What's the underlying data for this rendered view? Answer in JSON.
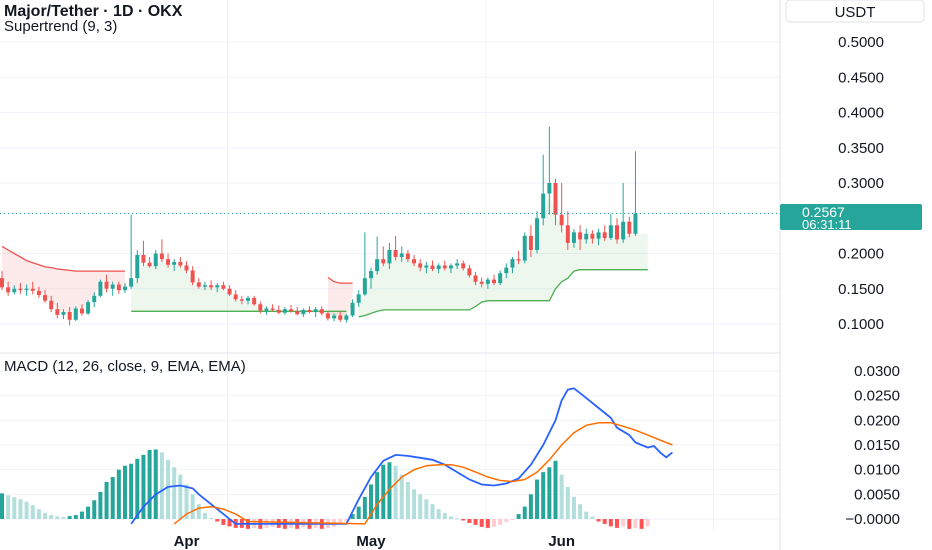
{
  "header": {
    "title": "Major/Tether · 1D · OKX",
    "indicator": "Supertrend (9, 3)"
  },
  "currency": "USDT",
  "price_label": {
    "price": "0.2567",
    "countdown": "06:31:11"
  },
  "colors": {
    "up": "#26a69a",
    "down": "#ef5350",
    "macd": "#2962ff",
    "signal": "#ff6d00",
    "hist_up_strong": "#26a69a",
    "hist_up_weak": "#b2dfdb",
    "hist_down_strong": "#ff5252",
    "hist_down_weak": "#ffcdd2",
    "st_up": "#4caf50",
    "st_down": "#ef5350"
  },
  "chart_data": [
    {
      "type": "candlestick",
      "name": "price",
      "y_ticks": [
        "0.5000",
        "0.4500",
        "0.4000",
        "0.3500",
        "0.3000",
        "0.2000",
        "0.1500",
        "0.1000"
      ],
      "ylim": [
        0.07,
        0.52
      ],
      "last_price": 0.2567,
      "day_start": "2025-03-02",
      "candles": [
        [
          0.165,
          0.175,
          0.148,
          0.152
        ],
        [
          0.152,
          0.16,
          0.14,
          0.145
        ],
        [
          0.145,
          0.155,
          0.142,
          0.15
        ],
        [
          0.15,
          0.158,
          0.143,
          0.148
        ],
        [
          0.148,
          0.156,
          0.14,
          0.15
        ],
        [
          0.15,
          0.16,
          0.142,
          0.147
        ],
        [
          0.147,
          0.153,
          0.137,
          0.141
        ],
        [
          0.141,
          0.148,
          0.13,
          0.133
        ],
        [
          0.133,
          0.14,
          0.117,
          0.121
        ],
        [
          0.121,
          0.13,
          0.108,
          0.113
        ],
        [
          0.113,
          0.121,
          0.107,
          0.117
        ],
        [
          0.117,
          0.124,
          0.098,
          0.106
        ],
        [
          0.106,
          0.125,
          0.104,
          0.122
        ],
        [
          0.122,
          0.128,
          0.112,
          0.115
        ],
        [
          0.115,
          0.134,
          0.113,
          0.131
        ],
        [
          0.131,
          0.145,
          0.124,
          0.14
        ],
        [
          0.14,
          0.163,
          0.138,
          0.16
        ],
        [
          0.16,
          0.17,
          0.145,
          0.15
        ],
        [
          0.15,
          0.16,
          0.14,
          0.156
        ],
        [
          0.156,
          0.16,
          0.143,
          0.148
        ],
        [
          0.148,
          0.158,
          0.144,
          0.153
        ],
        [
          0.153,
          0.255,
          0.15,
          0.165
        ],
        [
          0.165,
          0.205,
          0.158,
          0.198
        ],
        [
          0.198,
          0.218,
          0.182,
          0.187
        ],
        [
          0.187,
          0.195,
          0.18,
          0.182
        ],
        [
          0.182,
          0.205,
          0.178,
          0.2
        ],
        [
          0.2,
          0.22,
          0.188,
          0.192
        ],
        [
          0.192,
          0.2,
          0.18,
          0.184
        ],
        [
          0.184,
          0.192,
          0.175,
          0.188
        ],
        [
          0.188,
          0.195,
          0.18,
          0.183
        ],
        [
          0.183,
          0.189,
          0.172,
          0.176
        ],
        [
          0.176,
          0.182,
          0.155,
          0.159
        ],
        [
          0.159,
          0.165,
          0.15,
          0.153
        ],
        [
          0.153,
          0.16,
          0.148,
          0.155
        ],
        [
          0.155,
          0.162,
          0.148,
          0.152
        ],
        [
          0.152,
          0.158,
          0.145,
          0.155
        ],
        [
          0.155,
          0.16,
          0.148,
          0.15
        ],
        [
          0.15,
          0.155,
          0.14,
          0.142
        ],
        [
          0.142,
          0.148,
          0.132,
          0.135
        ],
        [
          0.135,
          0.14,
          0.128,
          0.133
        ],
        [
          0.133,
          0.14,
          0.128,
          0.137
        ],
        [
          0.137,
          0.14,
          0.126,
          0.128
        ],
        [
          0.128,
          0.132,
          0.115,
          0.119
        ],
        [
          0.119,
          0.125,
          0.113,
          0.122
        ],
        [
          0.122,
          0.128,
          0.118,
          0.12
        ],
        [
          0.12,
          0.126,
          0.114,
          0.116
        ],
        [
          0.116,
          0.124,
          0.113,
          0.121
        ],
        [
          0.121,
          0.127,
          0.116,
          0.118
        ],
        [
          0.118,
          0.124,
          0.112,
          0.114
        ],
        [
          0.114,
          0.122,
          0.11,
          0.12
        ],
        [
          0.12,
          0.125,
          0.115,
          0.117
        ],
        [
          0.117,
          0.124,
          0.11,
          0.121
        ],
        [
          0.121,
          0.125,
          0.112,
          0.115
        ],
        [
          0.115,
          0.118,
          0.105,
          0.108
        ],
        [
          0.108,
          0.115,
          0.104,
          0.112
        ],
        [
          0.112,
          0.118,
          0.103,
          0.106
        ],
        [
          0.106,
          0.114,
          0.102,
          0.112
        ],
        [
          0.112,
          0.135,
          0.11,
          0.13
        ],
        [
          0.13,
          0.148,
          0.124,
          0.142
        ],
        [
          0.142,
          0.23,
          0.14,
          0.165
        ],
        [
          0.165,
          0.18,
          0.15,
          0.175
        ],
        [
          0.175,
          0.224,
          0.17,
          0.192
        ],
        [
          0.192,
          0.21,
          0.182,
          0.186
        ],
        [
          0.186,
          0.215,
          0.178,
          0.205
        ],
        [
          0.205,
          0.225,
          0.19,
          0.195
        ],
        [
          0.195,
          0.21,
          0.188,
          0.2
        ],
        [
          0.2,
          0.205,
          0.188,
          0.192
        ],
        [
          0.192,
          0.198,
          0.182,
          0.186
        ],
        [
          0.186,
          0.192,
          0.175,
          0.18
        ],
        [
          0.18,
          0.188,
          0.172,
          0.183
        ],
        [
          0.183,
          0.19,
          0.175,
          0.178
        ],
        [
          0.178,
          0.186,
          0.172,
          0.183
        ],
        [
          0.183,
          0.19,
          0.176,
          0.179
        ],
        [
          0.179,
          0.186,
          0.172,
          0.183
        ],
        [
          0.183,
          0.192,
          0.178,
          0.186
        ],
        [
          0.186,
          0.19,
          0.176,
          0.179
        ],
        [
          0.179,
          0.184,
          0.166,
          0.169
        ],
        [
          0.169,
          0.174,
          0.155,
          0.16
        ],
        [
          0.16,
          0.166,
          0.152,
          0.157
        ],
        [
          0.157,
          0.166,
          0.15,
          0.163
        ],
        [
          0.163,
          0.17,
          0.155,
          0.158
        ],
        [
          0.158,
          0.176,
          0.155,
          0.172
        ],
        [
          0.172,
          0.186,
          0.165,
          0.18
        ],
        [
          0.18,
          0.195,
          0.172,
          0.192
        ],
        [
          0.192,
          0.204,
          0.185,
          0.19
        ],
        [
          0.19,
          0.23,
          0.186,
          0.225
        ],
        [
          0.225,
          0.24,
          0.195,
          0.205
        ],
        [
          0.205,
          0.26,
          0.2,
          0.25
        ],
        [
          0.25,
          0.34,
          0.24,
          0.285
        ],
        [
          0.285,
          0.38,
          0.255,
          0.3
        ],
        [
          0.3,
          0.306,
          0.24,
          0.255
        ],
        [
          0.255,
          0.3,
          0.23,
          0.24
        ],
        [
          0.24,
          0.26,
          0.205,
          0.215
        ],
        [
          0.215,
          0.235,
          0.208,
          0.23
        ],
        [
          0.23,
          0.24,
          0.205,
          0.22
        ],
        [
          0.22,
          0.235,
          0.214,
          0.228
        ],
        [
          0.228,
          0.233,
          0.214,
          0.221
        ],
        [
          0.221,
          0.235,
          0.212,
          0.23
        ],
        [
          0.23,
          0.24,
          0.218,
          0.222
        ],
        [
          0.222,
          0.256,
          0.219,
          0.24
        ],
        [
          0.24,
          0.25,
          0.214,
          0.22
        ],
        [
          0.22,
          0.3,
          0.215,
          0.245
        ],
        [
          0.245,
          0.252,
          0.223,
          0.228
        ],
        [
          0.228,
          0.345,
          0.225,
          0.2567
        ]
      ],
      "supertrend": [
        {
          "side": "down",
          "from": 0,
          "to": 20,
          "values": [
            0.21,
            0.205,
            0.2,
            0.195,
            0.19,
            0.187,
            0.184,
            0.181,
            0.18,
            0.178,
            0.177,
            0.176,
            0.175,
            0.175,
            0.175,
            0.175,
            0.175,
            0.175,
            0.175,
            0.175,
            0.175
          ]
        },
        {
          "side": "up",
          "from": 21,
          "to": 56,
          "values": [
            0.118,
            0.118,
            0.118,
            0.118,
            0.118,
            0.118,
            0.118,
            0.118,
            0.118,
            0.118,
            0.118,
            0.118,
            0.118,
            0.118,
            0.118,
            0.118,
            0.118,
            0.118,
            0.118,
            0.118,
            0.118,
            0.118,
            0.118,
            0.118,
            0.118,
            0.118,
            0.118,
            0.118,
            0.118,
            0.118,
            0.118,
            0.118,
            0.118,
            0.118,
            0.118,
            0.118
          ]
        },
        {
          "side": "down",
          "from": 53,
          "to": 57,
          "values": [
            0.166,
            0.16,
            0.158,
            0.158,
            0.158
          ]
        },
        {
          "side": "up",
          "from": 58,
          "to": 105,
          "values": [
            0.11,
            0.112,
            0.115,
            0.118,
            0.12,
            0.12,
            0.12,
            0.12,
            0.12,
            0.12,
            0.12,
            0.12,
            0.12,
            0.12,
            0.12,
            0.12,
            0.12,
            0.12,
            0.12,
            0.125,
            0.131,
            0.133,
            0.133,
            0.133,
            0.133,
            0.133,
            0.133,
            0.133,
            0.133,
            0.133,
            0.133,
            0.133,
            0.15,
            0.16,
            0.165,
            0.175,
            0.177,
            0.177,
            0.177,
            0.177,
            0.177,
            0.177,
            0.177,
            0.177,
            0.177,
            0.177,
            0.177,
            0.177
          ]
        }
      ]
    },
    {
      "type": "macd",
      "name": "MACD (12, 26, close, 9, EMA, EMA)",
      "y_ticks": [
        "0.0300",
        "0.0250",
        "0.0200",
        "0.0150",
        "0.0100",
        "0.0050",
        "−0.0000"
      ],
      "ylim": [
        -0.0015,
        0.031
      ],
      "x_ticks": [
        {
          "label": "Apr",
          "day": 30
        },
        {
          "label": "May",
          "day": 60
        },
        {
          "label": "Jun",
          "day": 91
        }
      ],
      "histogram": [
        0.0052,
        0.0048,
        0.0044,
        0.004,
        0.0035,
        0.0028,
        0.002,
        0.0012,
        0.0008,
        0.0005,
        0.0004,
        0.0006,
        0.0008,
        0.0015,
        0.0025,
        0.0038,
        0.0055,
        0.0075,
        0.0085,
        0.01,
        0.0108,
        0.0112,
        0.0122,
        0.013,
        0.014,
        0.0141,
        0.0135,
        0.012,
        0.0105,
        0.009,
        0.007,
        0.005,
        0.003,
        0.0012,
        0.0002,
        -0.0005,
        -0.0012,
        -0.0015,
        -0.0018,
        -0.0018,
        -0.002,
        -0.0018,
        -0.002,
        -0.0018,
        -0.0016,
        -0.0018,
        -0.002,
        -0.0018,
        -0.002,
        -0.0017,
        -0.002,
        -0.0018,
        -0.002,
        -0.0018,
        -0.0016,
        -0.001,
        -0.0005,
        0.001,
        0.0025,
        0.0045,
        0.007,
        0.0095,
        0.011,
        0.0115,
        0.0108,
        0.009,
        0.0075,
        0.006,
        0.005,
        0.004,
        0.003,
        0.002,
        0.0012,
        0.0005,
        0.0001,
        -0.0003,
        -0.0008,
        -0.0012,
        -0.0016,
        -0.0018,
        -0.0016,
        -0.0012,
        -0.0006,
        -0.0002,
        0.001,
        0.0025,
        0.005,
        0.008,
        0.0095,
        0.0105,
        0.0118,
        0.009,
        0.0065,
        0.0045,
        0.003,
        0.0015,
        0.0005,
        -0.0005,
        -0.001,
        -0.0015,
        -0.0018,
        -0.0015,
        -0.002,
        -0.0018,
        -0.002,
        -0.0015
      ],
      "macd": [
        [
          21,
          -0.001
        ],
        [
          23,
          0.0025
        ],
        [
          25,
          0.005
        ],
        [
          27,
          0.0065
        ],
        [
          29,
          0.0068
        ],
        [
          31,
          0.0062
        ],
        [
          32,
          0.005
        ],
        [
          34,
          0.003
        ],
        [
          36,
          0.001
        ],
        [
          38,
          -0.001
        ],
        [
          56,
          -0.001
        ],
        [
          58,
          0.004
        ],
        [
          60,
          0.0085
        ],
        [
          62,
          0.0118
        ],
        [
          64,
          0.013
        ],
        [
          66,
          0.0128
        ],
        [
          68,
          0.0124
        ],
        [
          70,
          0.012
        ],
        [
          72,
          0.011
        ],
        [
          74,
          0.0095
        ],
        [
          76,
          0.008
        ],
        [
          78,
          0.007
        ],
        [
          80,
          0.0068
        ],
        [
          82,
          0.0072
        ],
        [
          84,
          0.0082
        ],
        [
          86,
          0.011
        ],
        [
          88,
          0.015
        ],
        [
          90,
          0.02
        ],
        [
          91,
          0.024
        ],
        [
          92,
          0.0262
        ],
        [
          93,
          0.0265
        ],
        [
          95,
          0.0245
        ],
        [
          97,
          0.0225
        ],
        [
          99,
          0.0205
        ],
        [
          100,
          0.0185
        ],
        [
          102,
          0.017
        ],
        [
          103,
          0.0155
        ],
        [
          104,
          0.015
        ],
        [
          105,
          0.0145
        ],
        [
          106,
          0.0148
        ],
        [
          107,
          0.0135
        ],
        [
          108,
          0.0125
        ],
        [
          109,
          0.0135
        ]
      ],
      "signal": [
        [
          28,
          -0.001
        ],
        [
          30,
          0.001
        ],
        [
          32,
          0.0022
        ],
        [
          34,
          0.0025
        ],
        [
          36,
          0.002
        ],
        [
          38,
          0.001
        ],
        [
          40,
          -0.0005
        ],
        [
          59,
          -0.001
        ],
        [
          61,
          0.003
        ],
        [
          63,
          0.006
        ],
        [
          65,
          0.0085
        ],
        [
          67,
          0.01
        ],
        [
          69,
          0.0108
        ],
        [
          71,
          0.011
        ],
        [
          73,
          0.011
        ],
        [
          75,
          0.0105
        ],
        [
          77,
          0.0095
        ],
        [
          79,
          0.0085
        ],
        [
          81,
          0.0078
        ],
        [
          83,
          0.0076
        ],
        [
          85,
          0.008
        ],
        [
          87,
          0.0095
        ],
        [
          89,
          0.012
        ],
        [
          91,
          0.015
        ],
        [
          93,
          0.0175
        ],
        [
          95,
          0.019
        ],
        [
          97,
          0.0195
        ],
        [
          99,
          0.0195
        ],
        [
          101,
          0.0188
        ],
        [
          103,
          0.018
        ],
        [
          105,
          0.017
        ],
        [
          107,
          0.016
        ],
        [
          109,
          0.015
        ]
      ]
    }
  ]
}
